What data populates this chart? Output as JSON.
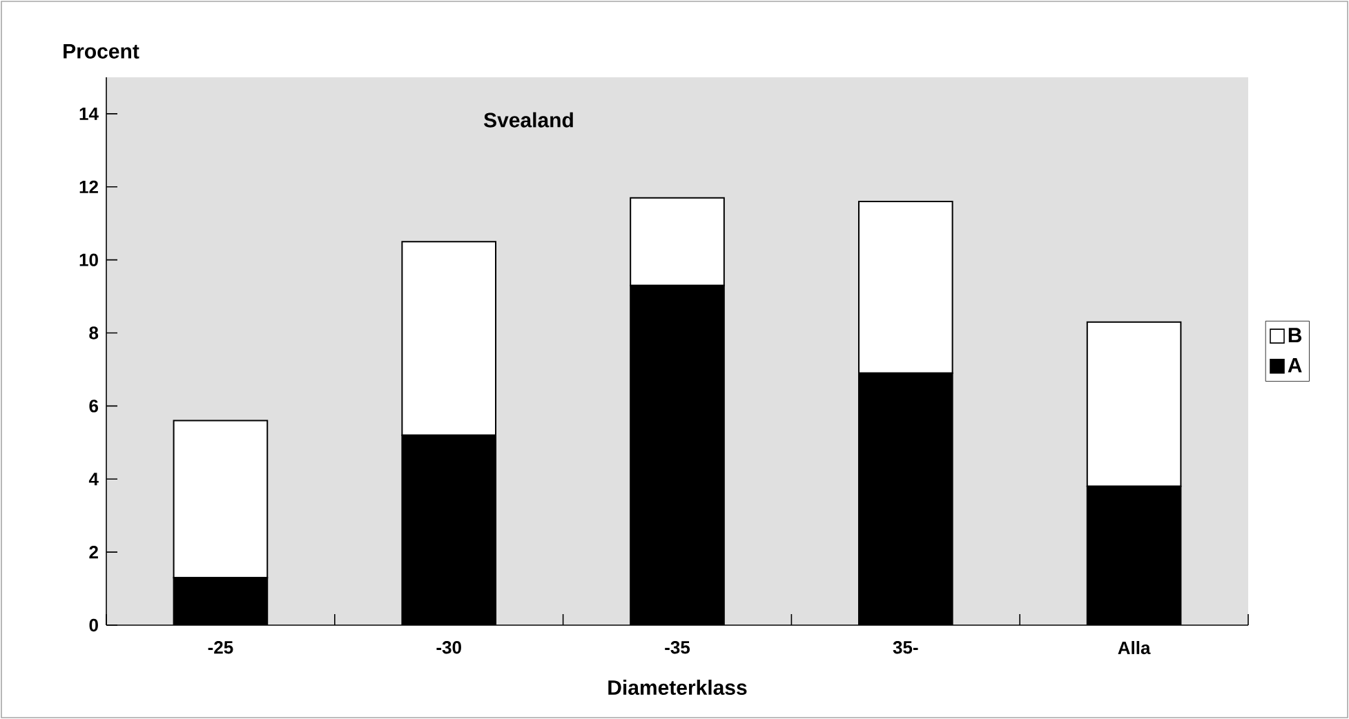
{
  "chart_data": {
    "type": "bar",
    "stacked": true,
    "title": "Svealand",
    "xlabel": "Diameterklass",
    "ylabel": "Procent",
    "categories": [
      "-25",
      "-30",
      "-35",
      "35-",
      "Alla"
    ],
    "series": [
      {
        "name": "A",
        "color": "#000000",
        "values": [
          1.3,
          5.2,
          9.3,
          6.9,
          3.8
        ]
      },
      {
        "name": "B",
        "color": "#ffffff",
        "values": [
          4.3,
          5.3,
          2.4,
          4.7,
          4.5
        ]
      }
    ],
    "ylim": [
      0,
      15
    ],
    "yticks": [
      0,
      2,
      4,
      6,
      8,
      10,
      12,
      14
    ],
    "legend": "right"
  }
}
